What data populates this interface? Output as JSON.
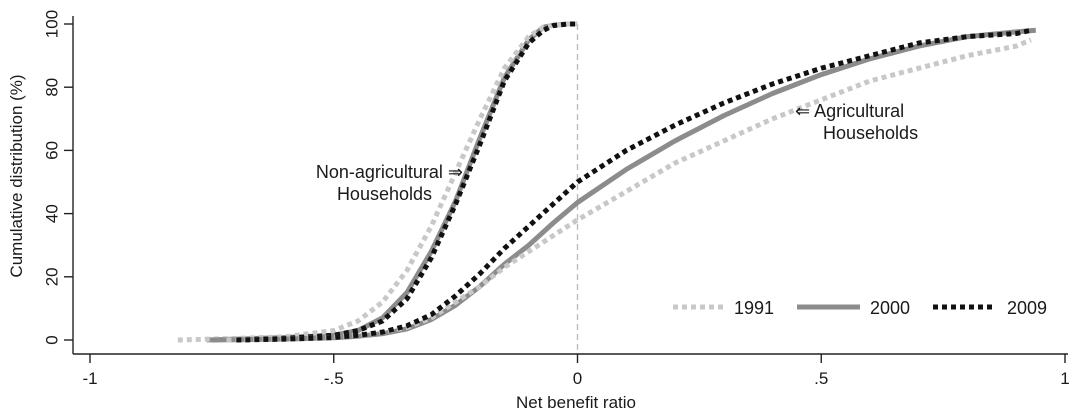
{
  "chart_data": {
    "type": "line",
    "title": "",
    "xlabel": "Net benefit ratio",
    "ylabel": "Cumulative distribution (%)",
    "xlim": [
      -1,
      1
    ],
    "ylim": [
      0,
      100
    ],
    "xticks": [
      -1,
      -0.5,
      0,
      0.5,
      1
    ],
    "xtick_labels": [
      "-1",
      "-.5",
      "0",
      ".5",
      "1"
    ],
    "yticks": [
      0,
      20,
      40,
      60,
      80,
      100
    ],
    "ytick_labels": [
      "0",
      "20",
      "40",
      "60",
      "80",
      "100"
    ],
    "grid": false,
    "reference_line_x": 0,
    "legend_position": "bottom-right",
    "legend": [
      {
        "label": "1991",
        "color": "#c8c8c8",
        "style": "dotted"
      },
      {
        "label": "2000",
        "color": "#8c8c8c",
        "style": "solid"
      },
      {
        "label": "2009",
        "color": "#111111",
        "style": "dotted"
      }
    ],
    "annotations": [
      {
        "lines": [
          "Non-agricultural ⇒",
          "Households"
        ]
      },
      {
        "lines": [
          "⇐ Agricultural",
          "Households"
        ]
      }
    ],
    "groups": [
      {
        "group": "Non-agricultural Households",
        "series": [
          {
            "name": "1991",
            "x": [
              -0.82,
              -0.7,
              -0.6,
              -0.5,
              -0.45,
              -0.4,
              -0.35,
              -0.3,
              -0.25,
              -0.2,
              -0.15,
              -0.1,
              -0.07,
              -0.05,
              -0.02,
              0
            ],
            "y": [
              0,
              0.5,
              1,
              3,
              6,
              12,
              22,
              36,
              53,
              70,
              86,
              96,
              99,
              99.6,
              100,
              100
            ]
          },
          {
            "name": "2000",
            "x": [
              -0.76,
              -0.7,
              -0.6,
              -0.5,
              -0.45,
              -0.4,
              -0.35,
              -0.3,
              -0.25,
              -0.2,
              -0.15,
              -0.1,
              -0.07,
              -0.05,
              -0.02,
              0
            ],
            "y": [
              0,
              0.3,
              0.8,
              1.5,
              3,
              7,
              15,
              28,
              44,
              64,
              83,
              95,
              99,
              99.6,
              100,
              100
            ]
          },
          {
            "name": "2009",
            "x": [
              -0.7,
              -0.6,
              -0.5,
              -0.45,
              -0.4,
              -0.35,
              -0.3,
              -0.25,
              -0.2,
              -0.15,
              -0.1,
              -0.07,
              -0.05,
              -0.02,
              0
            ],
            "y": [
              0,
              0.5,
              1.5,
              3,
              6,
              13,
              26,
              43,
              62,
              82,
              94,
              98,
              99.5,
              100,
              100
            ]
          }
        ]
      },
      {
        "group": "Agricultural Households",
        "series": [
          {
            "name": "1991",
            "x": [
              -0.72,
              -0.6,
              -0.5,
              -0.45,
              -0.4,
              -0.35,
              -0.3,
              -0.25,
              -0.2,
              -0.15,
              -0.1,
              -0.05,
              0,
              0.1,
              0.2,
              0.3,
              0.4,
              0.5,
              0.6,
              0.7,
              0.8,
              0.9,
              0.93
            ],
            "y": [
              0,
              0.3,
              0.8,
              1.5,
              2.5,
              4,
              7,
              12,
              17,
              23,
              28,
              33,
              38,
              47,
              56,
              63,
              70,
              76,
              82,
              86,
              90,
              93,
              95
            ]
          },
          {
            "name": "2000",
            "x": [
              -0.75,
              -0.6,
              -0.5,
              -0.45,
              -0.4,
              -0.35,
              -0.3,
              -0.25,
              -0.2,
              -0.15,
              -0.1,
              -0.05,
              0,
              0.1,
              0.2,
              0.3,
              0.4,
              0.5,
              0.6,
              0.7,
              0.8,
              0.9,
              0.94
            ],
            "y": [
              0,
              0.3,
              0.7,
              1.2,
              2,
              3.5,
              6.5,
              11,
              17,
              24,
              30,
              37,
              43.5,
              54,
              63,
              71,
              78,
              84,
              89,
              93,
              96,
              97.5,
              98
            ]
          },
          {
            "name": "2009",
            "x": [
              -0.7,
              -0.6,
              -0.5,
              -0.45,
              -0.4,
              -0.35,
              -0.3,
              -0.25,
              -0.2,
              -0.15,
              -0.1,
              -0.05,
              0,
              0.1,
              0.2,
              0.3,
              0.4,
              0.5,
              0.6,
              0.7,
              0.8,
              0.9,
              0.93
            ],
            "y": [
              0,
              0.3,
              0.8,
              1.5,
              2.5,
              4.5,
              8,
              14,
              21,
              29,
              36,
              43,
              50,
              60,
              68,
              75,
              81,
              86,
              90,
              94,
              96,
              97,
              98
            ]
          }
        ]
      }
    ]
  }
}
